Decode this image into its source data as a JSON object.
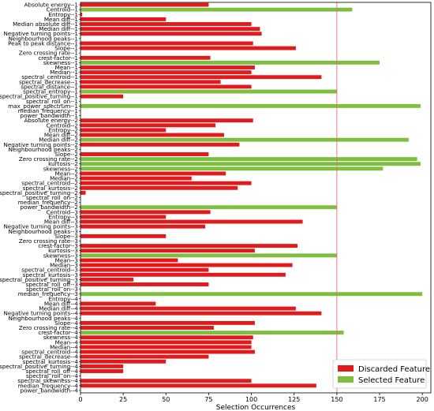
{
  "chart_data": {
    "type": "bar",
    "orientation": "horizontal",
    "xlabel": "Selection Occurrences",
    "xlim": [
      0,
      205
    ],
    "xticks": [
      0,
      25,
      50,
      75,
      100,
      125,
      150,
      175,
      200
    ],
    "threshold_line": 150,
    "threshold_color": "#e07070",
    "legend": {
      "placement": "bottom-right",
      "entries": [
        {
          "label": "Discarded Feature",
          "color": "#e31a1c"
        },
        {
          "label": "Selected Feature",
          "color": "#7fbf3f"
        }
      ]
    },
    "colors": {
      "discarded": "#e31a1c",
      "selected": "#7fbf3f"
    },
    "bars": [
      {
        "label": "Absolute energy--1",
        "value": 75,
        "selected": false
      },
      {
        "label": "Centroid--1",
        "value": 159,
        "selected": true
      },
      {
        "label": "Entropy--1",
        "value": 1,
        "selected": false
      },
      {
        "label": "Mean diff--1",
        "value": 50,
        "selected": false
      },
      {
        "label": "Median absolute diff--1",
        "value": 100,
        "selected": false
      },
      {
        "label": "Median diff--1",
        "value": 105,
        "selected": false
      },
      {
        "label": "Negative turning points--1",
        "value": 106,
        "selected": false
      },
      {
        "label": "Neighbourhood peaks--1",
        "value": 0,
        "selected": false
      },
      {
        "label": "Peak to peak distance--1",
        "value": 101,
        "selected": false
      },
      {
        "label": "Slope--1",
        "value": 126,
        "selected": false
      },
      {
        "label": "Zero crossing rate--1",
        "value": 0,
        "selected": false
      },
      {
        "label": "crest-factor--1",
        "value": 76,
        "selected": false
      },
      {
        "label": "skewness--1",
        "value": 175,
        "selected": true
      },
      {
        "label": "Mean--1",
        "value": 102,
        "selected": false
      },
      {
        "label": "Median--1",
        "value": 100,
        "selected": false
      },
      {
        "label": "spectral_centroid--1",
        "value": 141,
        "selected": false
      },
      {
        "label": "spectral_decrease--1",
        "value": 82,
        "selected": false
      },
      {
        "label": "spectral_distance--1",
        "value": 100,
        "selected": false
      },
      {
        "label": "spectral_entropy--1",
        "value": 150,
        "selected": true
      },
      {
        "label": "spectral_positive_turning--1",
        "value": 25,
        "selected": false
      },
      {
        "label": "spectral_roll_on--1",
        "value": 0,
        "selected": false
      },
      {
        "label": "max_power_spectrum--1",
        "value": 199,
        "selected": true
      },
      {
        "label": "median_frequency--1",
        "value": 0,
        "selected": false
      },
      {
        "label": "power_bandwidth--1",
        "value": 0,
        "selected": false
      },
      {
        "label": "Absolute energy--2",
        "value": 101,
        "selected": false
      },
      {
        "label": "Centroid--2",
        "value": 79,
        "selected": false
      },
      {
        "label": "Entropy--2",
        "value": 50,
        "selected": false
      },
      {
        "label": "Mean diff--2",
        "value": 84,
        "selected": false
      },
      {
        "label": "Median diff--2",
        "value": 192,
        "selected": true
      },
      {
        "label": "Negative turning points--2",
        "value": 93,
        "selected": false
      },
      {
        "label": "Neighbourhood peaks--2",
        "value": 0,
        "selected": false
      },
      {
        "label": "Slope--2",
        "value": 75,
        "selected": false
      },
      {
        "label": "Zero crossing rate--2",
        "value": 197,
        "selected": true
      },
      {
        "label": "kurtosis--2",
        "value": 199,
        "selected": true
      },
      {
        "label": "skewness--2",
        "value": 177,
        "selected": true
      },
      {
        "label": "Mean--2",
        "value": 85,
        "selected": false
      },
      {
        "label": "Median--2",
        "value": 65,
        "selected": false
      },
      {
        "label": "spectral_centroid--2",
        "value": 100,
        "selected": false
      },
      {
        "label": "spectral_kurtosis--2",
        "value": 92,
        "selected": false
      },
      {
        "label": "spectral_positive_turning--2",
        "value": 3,
        "selected": false
      },
      {
        "label": "spectral_roll_on--2",
        "value": 0,
        "selected": false
      },
      {
        "label": "median_frequency--2",
        "value": 0,
        "selected": false
      },
      {
        "label": "power_bandwidth--2",
        "value": 150,
        "selected": true
      },
      {
        "label": "Centroid--3",
        "value": 76,
        "selected": false
      },
      {
        "label": "Entropy--3",
        "value": 50,
        "selected": false
      },
      {
        "label": "Mean diff--3",
        "value": 130,
        "selected": false
      },
      {
        "label": "Negative turning points--3",
        "value": 73,
        "selected": false
      },
      {
        "label": "Neighbourhood peaks--3",
        "value": 0,
        "selected": false
      },
      {
        "label": "Slope--3",
        "value": 50,
        "selected": false
      },
      {
        "label": "Zero crossing rate--3",
        "value": 0,
        "selected": false
      },
      {
        "label": "crest-factor--3",
        "value": 127,
        "selected": false
      },
      {
        "label": "kurtosis--3",
        "value": 102,
        "selected": false
      },
      {
        "label": "skewness--3",
        "value": 150,
        "selected": true
      },
      {
        "label": "Mean--3",
        "value": 57,
        "selected": false
      },
      {
        "label": "Median--3",
        "value": 124,
        "selected": false
      },
      {
        "label": "spectral_centroid--3",
        "value": 75,
        "selected": false
      },
      {
        "label": "spectral_kurtosis--3",
        "value": 120,
        "selected": false
      },
      {
        "label": "spectral_positive_turning--3",
        "value": 31,
        "selected": false
      },
      {
        "label": "spectral_roll_off--3",
        "value": 75,
        "selected": false
      },
      {
        "label": "spectral_roll_on--3",
        "value": 0,
        "selected": false
      },
      {
        "label": "median_frequency--3",
        "value": 200,
        "selected": true
      },
      {
        "label": "Entropy--4",
        "value": 0,
        "selected": false
      },
      {
        "label": "Mean diff--4",
        "value": 44,
        "selected": false
      },
      {
        "label": "Median diff--4",
        "value": 126,
        "selected": false
      },
      {
        "label": "Negative turning points--4",
        "value": 141,
        "selected": false
      },
      {
        "label": "Neighbourhood peaks--4",
        "value": 0,
        "selected": false
      },
      {
        "label": "Slope--4",
        "value": 102,
        "selected": false
      },
      {
        "label": "Zero crossing rate--4",
        "value": 78,
        "selected": false
      },
      {
        "label": "crest-factor--4",
        "value": 154,
        "selected": true
      },
      {
        "label": "skewness--4",
        "value": 101,
        "selected": false
      },
      {
        "label": "Mean--4",
        "value": 100,
        "selected": false
      },
      {
        "label": "Median--4",
        "value": 100,
        "selected": false
      },
      {
        "label": "spectral_centroid--4",
        "value": 102,
        "selected": false
      },
      {
        "label": "spectral_decrease--4",
        "value": 75,
        "selected": false
      },
      {
        "label": "spectral_kurtosis--4",
        "value": 50,
        "selected": false
      },
      {
        "label": "spectral_positive_turning--4",
        "value": 25,
        "selected": false
      },
      {
        "label": "spectral_roll_off--4",
        "value": 25,
        "selected": false
      },
      {
        "label": "spectral_roll_on--4",
        "value": 0,
        "selected": false
      },
      {
        "label": "spectral_skewness--4",
        "value": 100,
        "selected": false
      },
      {
        "label": "median_frequency--4",
        "value": 138,
        "selected": false
      },
      {
        "label": "power_bandwidth--4",
        "value": 0,
        "selected": false
      }
    ]
  }
}
